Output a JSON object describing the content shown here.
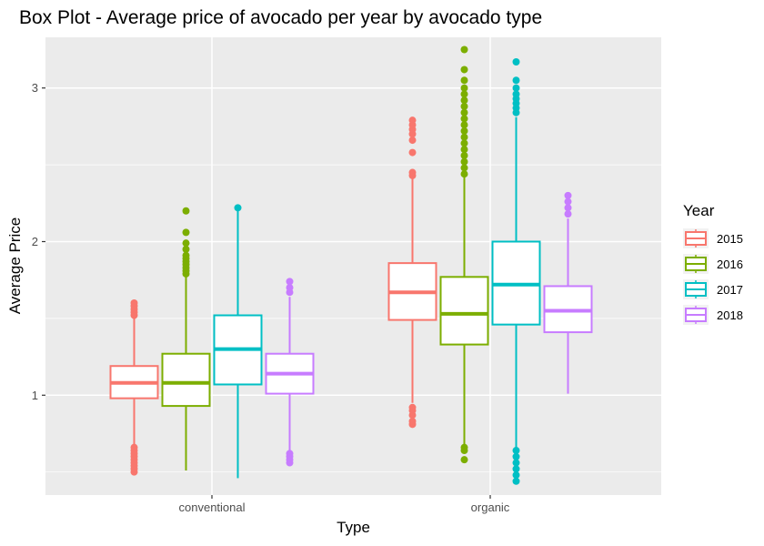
{
  "chart_data": {
    "type": "box",
    "title": "Box Plot - Average price of avocado per year by avocado type",
    "xlabel": "Type",
    "ylabel": "Average Price",
    "categories": [
      "conventional",
      "organic"
    ],
    "yticks": [
      1,
      2,
      3
    ],
    "ylim": [
      0.35,
      3.33
    ],
    "legend": {
      "title": "Year",
      "position": "right"
    },
    "grid": true,
    "background": "#ebebeb",
    "series": [
      {
        "name": "2015",
        "color": "#f8766d",
        "boxes": [
          {
            "category": "conventional",
            "q1": 0.98,
            "median": 1.08,
            "q3": 1.19,
            "whisker_low": 0.67,
            "whisker_high": 1.5,
            "outliers": [
              0.5,
              0.52,
              0.54,
              0.56,
              0.58,
              0.6,
              0.62,
              0.64,
              0.66,
              1.52,
              1.54,
              1.56,
              1.58,
              1.6
            ]
          },
          {
            "category": "organic",
            "q1": 1.49,
            "median": 1.67,
            "q3": 1.86,
            "whisker_low": 0.95,
            "whisker_high": 2.41,
            "outliers": [
              0.81,
              0.83,
              0.87,
              0.9,
              0.92,
              2.43,
              2.45,
              2.58,
              2.66,
              2.7,
              2.73,
              2.76,
              2.79
            ]
          }
        ]
      },
      {
        "name": "2016",
        "color": "#7cae00",
        "boxes": [
          {
            "category": "conventional",
            "q1": 0.93,
            "median": 1.08,
            "q3": 1.27,
            "whisker_low": 0.51,
            "whisker_high": 1.77,
            "outliers": [
              1.79,
              1.81,
              1.83,
              1.85,
              1.87,
              1.89,
              1.91,
              1.95,
              1.99,
              2.06,
              2.2
            ]
          },
          {
            "category": "organic",
            "q1": 1.33,
            "median": 1.53,
            "q3": 1.77,
            "whisker_low": 0.68,
            "whisker_high": 2.42,
            "outliers": [
              0.58,
              0.64,
              0.66,
              2.44,
              2.48,
              2.52,
              2.56,
              2.6,
              2.64,
              2.68,
              2.72,
              2.76,
              2.8,
              2.84,
              2.88,
              2.92,
              2.96,
              3.0,
              3.05,
              3.12,
              3.25
            ]
          }
        ]
      },
      {
        "name": "2017",
        "color": "#00bfc4",
        "boxes": [
          {
            "category": "conventional",
            "q1": 1.07,
            "median": 1.3,
            "q3": 1.52,
            "whisker_low": 0.46,
            "whisker_high": 2.22,
            "outliers": [
              2.22
            ]
          },
          {
            "category": "organic",
            "q1": 1.46,
            "median": 1.72,
            "q3": 2.0,
            "whisker_low": 0.66,
            "whisker_high": 2.81,
            "outliers": [
              0.44,
              0.48,
              0.52,
              0.56,
              0.6,
              0.64,
              2.84,
              2.87,
              2.9,
              2.93,
              2.96,
              3.0,
              3.05,
              3.17
            ]
          }
        ]
      },
      {
        "name": "2018",
        "color": "#c77cff",
        "boxes": [
          {
            "category": "conventional",
            "q1": 1.01,
            "median": 1.14,
            "q3": 1.27,
            "whisker_low": 0.63,
            "whisker_high": 1.64,
            "outliers": [
              0.56,
              0.58,
              0.6,
              0.62,
              1.67,
              1.7,
              1.74
            ]
          },
          {
            "category": "organic",
            "q1": 1.41,
            "median": 1.55,
            "q3": 1.71,
            "whisker_low": 1.01,
            "whisker_high": 2.15,
            "outliers": [
              2.18,
              2.22,
              2.26,
              2.3
            ]
          }
        ]
      }
    ]
  }
}
